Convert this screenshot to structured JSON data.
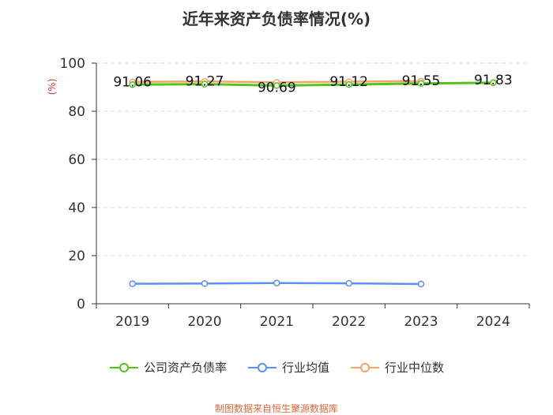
{
  "chart_data": {
    "type": "line",
    "title": "近年来资产负债率情况(%)",
    "ylabel": "(%)",
    "xlabel": "",
    "categories": [
      "2019",
      "2020",
      "2021",
      "2022",
      "2023",
      "2024"
    ],
    "ylim": [
      0,
      100
    ],
    "yticks": [
      0,
      20,
      40,
      60,
      80,
      100
    ],
    "grid": true,
    "legend_position": "bottom",
    "series": [
      {
        "name": "公司资产负债率",
        "color": "#52c41a",
        "values": [
          91.06,
          91.27,
          90.69,
          91.12,
          91.55,
          91.83
        ],
        "labels": [
          "91.06",
          "91.27",
          "90.69",
          "91.12",
          "91.55",
          "91.83"
        ]
      },
      {
        "name": "行业均值",
        "color": "#5b8ff9",
        "values": [
          8.3,
          8.4,
          8.6,
          8.5,
          8.2,
          null
        ]
      },
      {
        "name": "行业中位数",
        "color": "#f6a26b",
        "values": [
          92.2,
          92.4,
          92.0,
          92.3,
          92.5,
          null
        ]
      }
    ]
  },
  "source": "制图数据来自恒生聚源数据库"
}
